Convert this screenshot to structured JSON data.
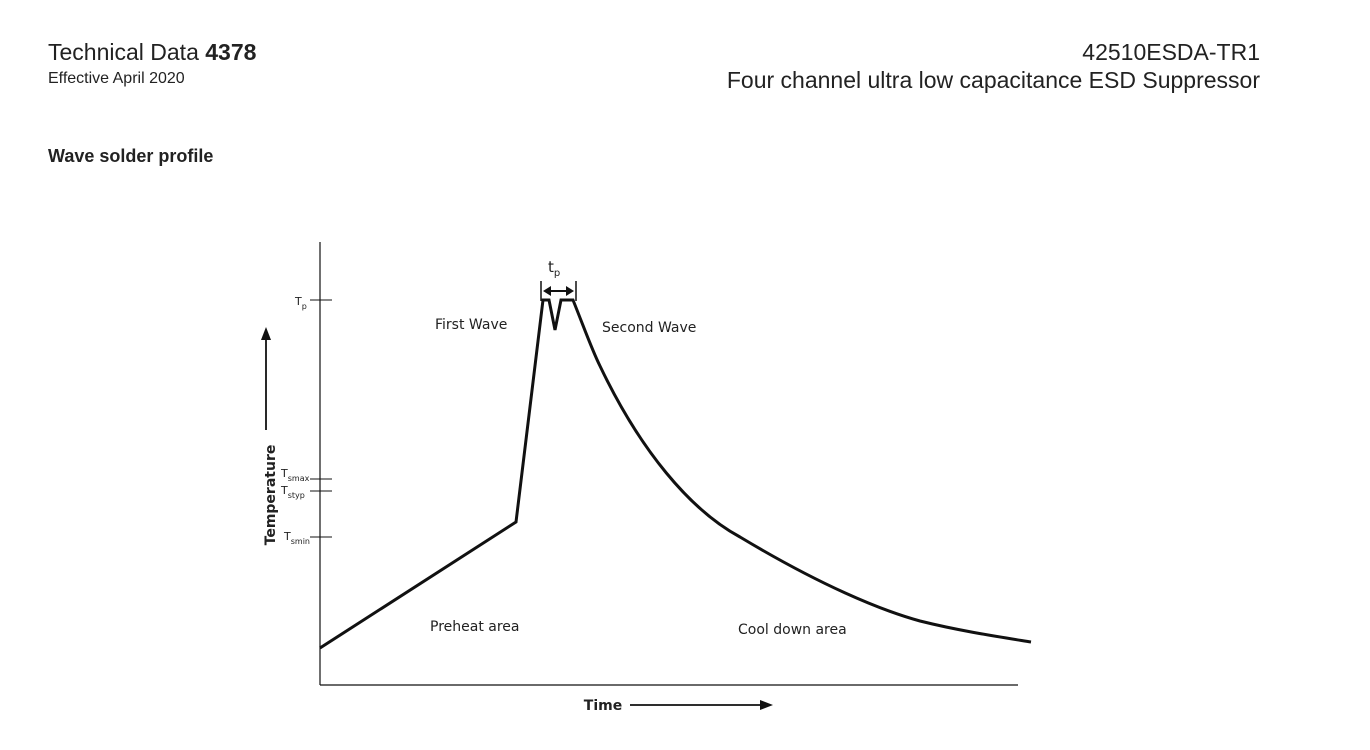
{
  "header": {
    "doc_type": "Technical Data",
    "doc_number": "4378",
    "effective": "Effective April 2020",
    "part_number": "42510ESDA-TR1",
    "description": "Four channel ultra low capacitance ESD Suppressor"
  },
  "section_title": "Wave solder profile",
  "diagram": {
    "y_axis_label": "Temperature",
    "x_axis_label": "Time",
    "levels": [
      {
        "symbol": "T",
        "subscript": "p"
      },
      {
        "symbol": "T",
        "subscript": "smax"
      },
      {
        "symbol": "T",
        "subscript": "styp"
      },
      {
        "symbol": "T",
        "subscript": "smin"
      }
    ],
    "peak_time": {
      "symbol": "t",
      "subscript": "p"
    },
    "regions": [
      "First Wave",
      "Second Wave",
      "Preheat area",
      "Cool down area"
    ]
  }
}
